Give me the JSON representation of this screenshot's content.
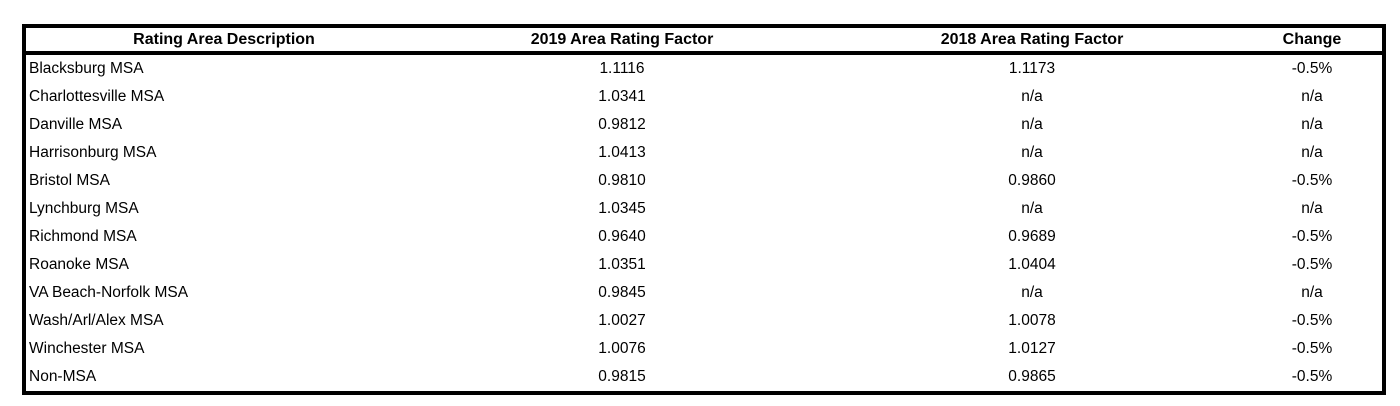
{
  "table": {
    "name": "area-rating-factors",
    "columns": [
      {
        "key": "area",
        "label": "Rating Area Description",
        "align": "left"
      },
      {
        "key": "factor_2019",
        "label": "2019 Area Rating Factor",
        "align": "center"
      },
      {
        "key": "factor_2018",
        "label": "2018 Area Rating Factor",
        "align": "center"
      },
      {
        "key": "change",
        "label": "Change",
        "align": "center"
      }
    ],
    "rows": [
      {
        "area": "Blacksburg MSA",
        "factor_2019": "1.1116",
        "factor_2018": "1.1173",
        "change": "-0.5%"
      },
      {
        "area": "Charlottesville MSA",
        "factor_2019": "1.0341",
        "factor_2018": "n/a",
        "change": "n/a"
      },
      {
        "area": "Danville MSA",
        "factor_2019": "0.9812",
        "factor_2018": "n/a",
        "change": "n/a"
      },
      {
        "area": "Harrisonburg MSA",
        "factor_2019": "1.0413",
        "factor_2018": "n/a",
        "change": "n/a"
      },
      {
        "area": "Bristol MSA",
        "factor_2019": "0.9810",
        "factor_2018": "0.9860",
        "change": "-0.5%"
      },
      {
        "area": "Lynchburg MSA",
        "factor_2019": "1.0345",
        "factor_2018": "n/a",
        "change": "n/a"
      },
      {
        "area": "Richmond MSA",
        "factor_2019": "0.9640",
        "factor_2018": "0.9689",
        "change": "-0.5%"
      },
      {
        "area": "Roanoke MSA",
        "factor_2019": "1.0351",
        "factor_2018": "1.0404",
        "change": "-0.5%"
      },
      {
        "area": "VA Beach-Norfolk MSA",
        "factor_2019": "0.9845",
        "factor_2018": "n/a",
        "change": "n/a"
      },
      {
        "area": "Wash/Arl/Alex MSA",
        "factor_2019": "1.0027",
        "factor_2018": "1.0078",
        "change": "-0.5%"
      },
      {
        "area": "Winchester MSA",
        "factor_2019": "1.0076",
        "factor_2018": "1.0127",
        "change": "-0.5%"
      },
      {
        "area": "Non-MSA",
        "factor_2019": "0.9815",
        "factor_2018": "0.9865",
        "change": "-0.5%"
      }
    ]
  },
  "colors": {
    "border": "#000000",
    "text": "#000000",
    "background": "#ffffff"
  }
}
